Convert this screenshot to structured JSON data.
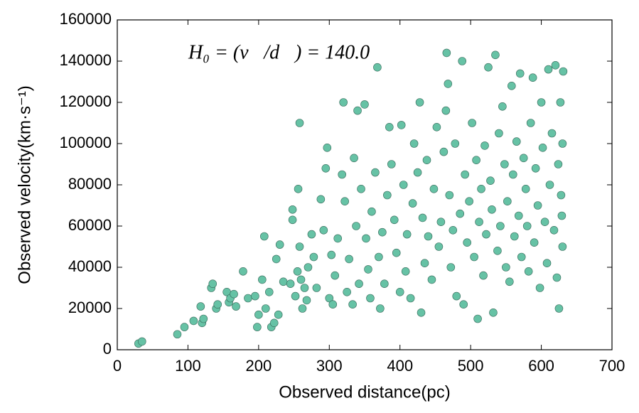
{
  "chart_data": {
    "type": "scatter",
    "xlabel": "Observed distance(pc)",
    "ylabel": "Observed velocity(km·s⁻¹)",
    "annotation": "H₀ = (v⃗/d⃗) = 140.0",
    "color": "#66c2a5",
    "edgecolor": "#3a6b5c",
    "xlim": [
      0,
      700
    ],
    "xticks": [
      0,
      100,
      200,
      300,
      400,
      500,
      600,
      700
    ],
    "ylim": [
      0,
      160000
    ],
    "yticks": [
      0,
      20000,
      40000,
      60000,
      80000,
      100000,
      120000,
      140000,
      160000
    ],
    "grid": false,
    "x": [
      30,
      35,
      85,
      95,
      108,
      118,
      120,
      122,
      133,
      135,
      140,
      142,
      155,
      158,
      160,
      165,
      168,
      178,
      185,
      195,
      198,
      200,
      205,
      208,
      210,
      215,
      218,
      222,
      225,
      228,
      230,
      235,
      245,
      248,
      248,
      252,
      255,
      256,
      258,
      258,
      260,
      262,
      265,
      268,
      270,
      275,
      278,
      282,
      288,
      292,
      295,
      297,
      300,
      303,
      305,
      308,
      312,
      318,
      320,
      322,
      325,
      328,
      333,
      335,
      338,
      340,
      342,
      345,
      350,
      352,
      355,
      358,
      360,
      365,
      368,
      370,
      372,
      375,
      378,
      382,
      385,
      388,
      392,
      395,
      400,
      402,
      405,
      408,
      410,
      415,
      418,
      420,
      425,
      428,
      430,
      432,
      435,
      438,
      440,
      445,
      448,
      452,
      455,
      458,
      462,
      465,
      466,
      468,
      470,
      472,
      475,
      478,
      480,
      485,
      488,
      490,
      492,
      495,
      498,
      502,
      505,
      508,
      510,
      512,
      515,
      518,
      520,
      522,
      525,
      528,
      530,
      532,
      535,
      538,
      540,
      542,
      545,
      548,
      550,
      552,
      555,
      558,
      560,
      562,
      565,
      568,
      570,
      572,
      575,
      578,
      580,
      582,
      585,
      588,
      590,
      592,
      595,
      598,
      600,
      602,
      605,
      608,
      610,
      612,
      615,
      618,
      620,
      622,
      624,
      625,
      627,
      628,
      630,
      630,
      631,
      629
    ],
    "values": [
      3000,
      4000,
      7500,
      11000,
      14000,
      21000,
      13000,
      15000,
      30000,
      32000,
      20000,
      22000,
      28000,
      23000,
      25000,
      27000,
      21000,
      38000,
      25000,
      26000,
      11000,
      17000,
      34000,
      55000,
      20000,
      28000,
      11000,
      13000,
      44000,
      17000,
      51000,
      33000,
      32000,
      68000,
      63000,
      26000,
      38000,
      78000,
      50000,
      110000,
      34000,
      20000,
      30000,
      24000,
      40000,
      56000,
      45000,
      30000,
      73000,
      58000,
      88000,
      98000,
      25000,
      46000,
      22000,
      36000,
      54000,
      85000,
      120000,
      72000,
      28000,
      44000,
      22000,
      93000,
      60000,
      116000,
      32000,
      78000,
      119000,
      54000,
      39000,
      25000,
      67000,
      86000,
      137000,
      45000,
      20000,
      57000,
      32000,
      75000,
      108000,
      90000,
      63000,
      47000,
      28000,
      109000,
      80000,
      38000,
      56000,
      25000,
      71000,
      100000,
      86000,
      120000,
      18000,
      64000,
      42000,
      92000,
      55000,
      34000,
      78000,
      108000,
      50000,
      62000,
      96000,
      116000,
      144000,
      129000,
      75000,
      40000,
      58000,
      100000,
      26000,
      66000,
      140000,
      22000,
      85000,
      52000,
      72000,
      110000,
      45000,
      92000,
      15000,
      62000,
      78000,
      36000,
      99000,
      56000,
      137000,
      82000,
      68000,
      18000,
      143000,
      48000,
      105000,
      60000,
      118000,
      90000,
      40000,
      72000,
      33000,
      128000,
      85000,
      55000,
      101000,
      65000,
      134000,
      45000,
      93000,
      78000,
      60000,
      38000,
      110000,
      132000,
      52000,
      88000,
      70000,
      30000,
      120000,
      98000,
      62000,
      42000,
      136000,
      80000,
      105000,
      58000,
      138000,
      35000,
      90000,
      20000,
      120000,
      75000,
      50000,
      100000,
      135000,
      65000
    ]
  }
}
